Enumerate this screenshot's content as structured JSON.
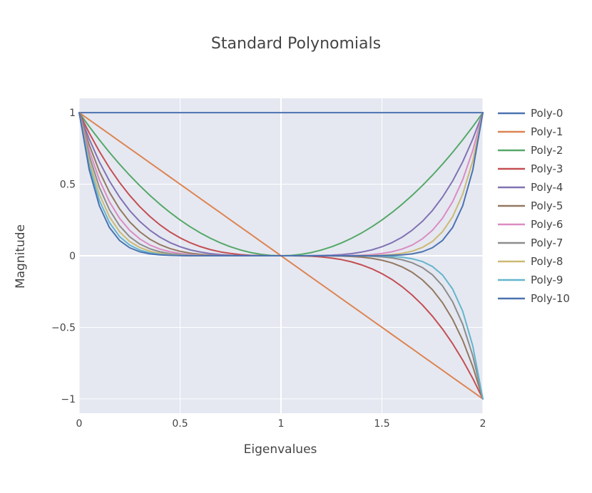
{
  "chart_data": {
    "type": "line",
    "title": "Standard  Polynomials",
    "xlabel": "Eigenvalues",
    "ylabel": "Magnitude",
    "xlim": [
      0,
      2
    ],
    "ylim": [
      -1.1,
      1.1
    ],
    "x_ticks": [
      0,
      0.5,
      1,
      1.5,
      2
    ],
    "x_tick_labels": [
      "0",
      "0.5",
      "1",
      "1.5",
      "2"
    ],
    "y_ticks": [
      -1,
      -0.5,
      0,
      0.5,
      1
    ],
    "y_tick_labels": [
      "−1",
      "−0.5",
      "0",
      "0.5",
      "1"
    ],
    "grid": true,
    "legend_position": "right",
    "x": [
      0,
      0.05,
      0.1,
      0.15,
      0.2,
      0.25,
      0.3,
      0.35,
      0.4,
      0.45,
      0.5,
      0.55,
      0.6,
      0.65,
      0.7,
      0.75,
      0.8,
      0.85,
      0.9,
      0.95,
      1.0,
      1.05,
      1.1,
      1.15,
      1.2,
      1.25,
      1.3,
      1.35,
      1.4,
      1.45,
      1.5,
      1.55,
      1.6,
      1.65,
      1.7,
      1.75,
      1.8,
      1.85,
      1.9,
      1.95,
      2.0
    ],
    "series": [
      {
        "name": "Poly-0",
        "color": "#4c72b0",
        "values": [
          1,
          1,
          1,
          1,
          1,
          1,
          1,
          1,
          1,
          1,
          1,
          1,
          1,
          1,
          1,
          1,
          1,
          1,
          1,
          1,
          1,
          1,
          1,
          1,
          1,
          1,
          1,
          1,
          1,
          1,
          1,
          1,
          1,
          1,
          1,
          1,
          1,
          1,
          1,
          1,
          1
        ]
      },
      {
        "name": "Poly-1",
        "color": "#dd8452",
        "values": [
          1,
          0.95,
          0.9,
          0.85,
          0.8,
          0.75,
          0.7,
          0.65,
          0.6,
          0.55,
          0.5,
          0.45,
          0.4,
          0.35,
          0.3,
          0.25,
          0.2,
          0.15,
          0.1,
          0.05,
          0,
          -0.05,
          -0.1,
          -0.15,
          -0.2,
          -0.25,
          -0.3,
          -0.35,
          -0.4,
          -0.45,
          -0.5,
          -0.55,
          -0.6,
          -0.65,
          -0.7,
          -0.75,
          -0.8,
          -0.85,
          -0.9,
          -0.95,
          -1
        ]
      },
      {
        "name": "Poly-2",
        "color": "#55a868",
        "values": [
          1,
          0.9025,
          0.81,
          0.7225,
          0.64,
          0.5625,
          0.49,
          0.4225,
          0.36,
          0.3025,
          0.25,
          0.2025,
          0.16,
          0.1225,
          0.09,
          0.0625,
          0.04,
          0.0225,
          0.01,
          0.0025,
          0,
          0.0025,
          0.01,
          0.0225,
          0.04,
          0.0625,
          0.09,
          0.1225,
          0.16,
          0.2025,
          0.25,
          0.3025,
          0.36,
          0.4225,
          0.49,
          0.5625,
          0.64,
          0.7225,
          0.81,
          0.9025,
          1
        ]
      },
      {
        "name": "Poly-3",
        "color": "#c44e52",
        "values": [
          1,
          0.857,
          0.729,
          0.614,
          0.512,
          0.422,
          0.343,
          0.275,
          0.216,
          0.166,
          0.125,
          0.091,
          0.064,
          0.043,
          0.027,
          0.016,
          0.008,
          0.003,
          0.001,
          0,
          0,
          0,
          -0.001,
          -0.003,
          -0.008,
          -0.016,
          -0.027,
          -0.043,
          -0.064,
          -0.091,
          -0.125,
          -0.166,
          -0.216,
          -0.275,
          -0.343,
          -0.422,
          -0.512,
          -0.614,
          -0.729,
          -0.857,
          -1
        ]
      },
      {
        "name": "Poly-4",
        "color": "#8172b3",
        "values": [
          1,
          0.815,
          0.656,
          0.522,
          0.41,
          0.316,
          0.24,
          0.179,
          0.13,
          0.092,
          0.063,
          0.041,
          0.026,
          0.015,
          0.008,
          0.004,
          0.002,
          0.001,
          0,
          0,
          0,
          0,
          0,
          0.001,
          0.002,
          0.004,
          0.008,
          0.015,
          0.026,
          0.041,
          0.063,
          0.092,
          0.13,
          0.179,
          0.24,
          0.316,
          0.41,
          0.522,
          0.656,
          0.815,
          1
        ]
      },
      {
        "name": "Poly-5",
        "color": "#937860",
        "values": [
          1,
          0.774,
          0.59,
          0.444,
          0.328,
          0.237,
          0.168,
          0.116,
          0.078,
          0.05,
          0.031,
          0.018,
          0.01,
          0.005,
          0.002,
          0.001,
          0,
          0,
          0,
          0,
          0,
          0,
          0,
          0,
          0,
          -0.001,
          -0.002,
          -0.005,
          -0.01,
          -0.018,
          -0.031,
          -0.05,
          -0.078,
          -0.116,
          -0.168,
          -0.237,
          -0.328,
          -0.444,
          -0.59,
          -0.774,
          -1
        ]
      },
      {
        "name": "Poly-6",
        "color": "#da8bc3",
        "values": [
          1,
          0.735,
          0.531,
          0.377,
          0.262,
          0.178,
          0.118,
          0.075,
          0.047,
          0.028,
          0.016,
          0.008,
          0.004,
          0.002,
          0.001,
          0,
          0,
          0,
          0,
          0,
          0,
          0,
          0,
          0,
          0,
          0,
          0.001,
          0.002,
          0.004,
          0.008,
          0.016,
          0.028,
          0.047,
          0.075,
          0.118,
          0.178,
          0.262,
          0.377,
          0.531,
          0.735,
          1
        ]
      },
      {
        "name": "Poly-7",
        "color": "#8c8c8c",
        "values": [
          1,
          0.698,
          0.478,
          0.321,
          0.21,
          0.133,
          0.082,
          0.049,
          0.028,
          0.015,
          0.008,
          0.004,
          0.002,
          0.001,
          0,
          0,
          0,
          0,
          0,
          0,
          0,
          0,
          0,
          0,
          0,
          0,
          0,
          -0.001,
          -0.002,
          -0.004,
          -0.008,
          -0.015,
          -0.028,
          -0.049,
          -0.082,
          -0.133,
          -0.21,
          -0.321,
          -0.478,
          -0.698,
          -1
        ]
      },
      {
        "name": "Poly-8",
        "color": "#ccb974",
        "values": [
          1,
          0.663,
          0.43,
          0.272,
          0.168,
          0.1,
          0.058,
          0.032,
          0.017,
          0.008,
          0.004,
          0.002,
          0.001,
          0,
          0,
          0,
          0,
          0,
          0,
          0,
          0,
          0,
          0,
          0,
          0,
          0,
          0,
          0,
          0.001,
          0.002,
          0.004,
          0.008,
          0.017,
          0.032,
          0.058,
          0.1,
          0.168,
          0.272,
          0.43,
          0.663,
          1
        ]
      },
      {
        "name": "Poly-9",
        "color": "#64b5cd",
        "values": [
          1,
          0.63,
          0.387,
          0.232,
          0.134,
          0.075,
          0.04,
          0.021,
          0.01,
          0.005,
          0.002,
          0.001,
          0,
          0,
          0,
          0,
          0,
          0,
          0,
          0,
          0,
          0,
          0,
          0,
          0,
          0,
          0,
          0,
          0,
          -0.001,
          -0.002,
          -0.005,
          -0.01,
          -0.021,
          -0.04,
          -0.075,
          -0.134,
          -0.232,
          -0.387,
          -0.63,
          -1
        ]
      },
      {
        "name": "Poly-10",
        "color": "#4c72b0",
        "values": [
          1,
          0.599,
          0.349,
          0.197,
          0.107,
          0.056,
          0.028,
          0.013,
          0.006,
          0.003,
          0.001,
          0,
          0,
          0,
          0,
          0,
          0,
          0,
          0,
          0,
          0,
          0,
          0,
          0,
          0,
          0,
          0,
          0,
          0,
          0,
          0.001,
          0.003,
          0.006,
          0.013,
          0.028,
          0.056,
          0.107,
          0.197,
          0.349,
          0.599,
          1
        ]
      }
    ]
  }
}
